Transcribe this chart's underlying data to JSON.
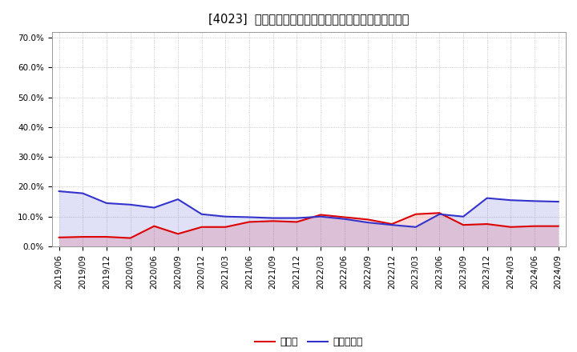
{
  "title": "[4023]  現預金、有利子負債の総資産に対する比率の推移",
  "x_labels": [
    "2019/06",
    "2019/09",
    "2019/12",
    "2020/03",
    "2020/06",
    "2020/09",
    "2020/12",
    "2021/03",
    "2021/06",
    "2021/09",
    "2021/12",
    "2022/03",
    "2022/06",
    "2022/09",
    "2022/12",
    "2023/03",
    "2023/06",
    "2023/09",
    "2023/12",
    "2024/03",
    "2024/06",
    "2024/09"
  ],
  "cash": [
    0.03,
    0.032,
    0.032,
    0.028,
    0.068,
    0.042,
    0.065,
    0.065,
    0.082,
    0.085,
    0.082,
    0.106,
    0.098,
    0.09,
    0.075,
    0.108,
    0.112,
    0.072,
    0.075,
    0.065,
    0.068,
    0.068
  ],
  "debt": [
    0.185,
    0.178,
    0.145,
    0.14,
    0.13,
    0.158,
    0.108,
    0.1,
    0.098,
    0.095,
    0.095,
    0.1,
    0.092,
    0.08,
    0.072,
    0.065,
    0.108,
    0.1,
    0.162,
    0.155,
    0.152,
    0.15
  ],
  "cash_color": "#dd0000",
  "debt_color": "#3333cc",
  "ylim": [
    0.0,
    0.72
  ],
  "yticks": [
    0.0,
    0.1,
    0.2,
    0.3,
    0.4,
    0.5,
    0.6,
    0.7
  ],
  "ytick_labels": [
    "0.0%",
    "10.0%",
    "20.0%",
    "30.0%",
    "40.0%",
    "50.0%",
    "60.0%",
    "70.0%"
  ],
  "legend_cash": "現預金",
  "legend_debt": "有利子負債",
  "bg_color": "#ffffff",
  "plot_bg_color": "#ffffff",
  "grid_color": "#aaaaaa",
  "line_width": 1.5,
  "title_fontsize": 10.5,
  "tick_fontsize": 7.5,
  "legend_fontsize": 9
}
